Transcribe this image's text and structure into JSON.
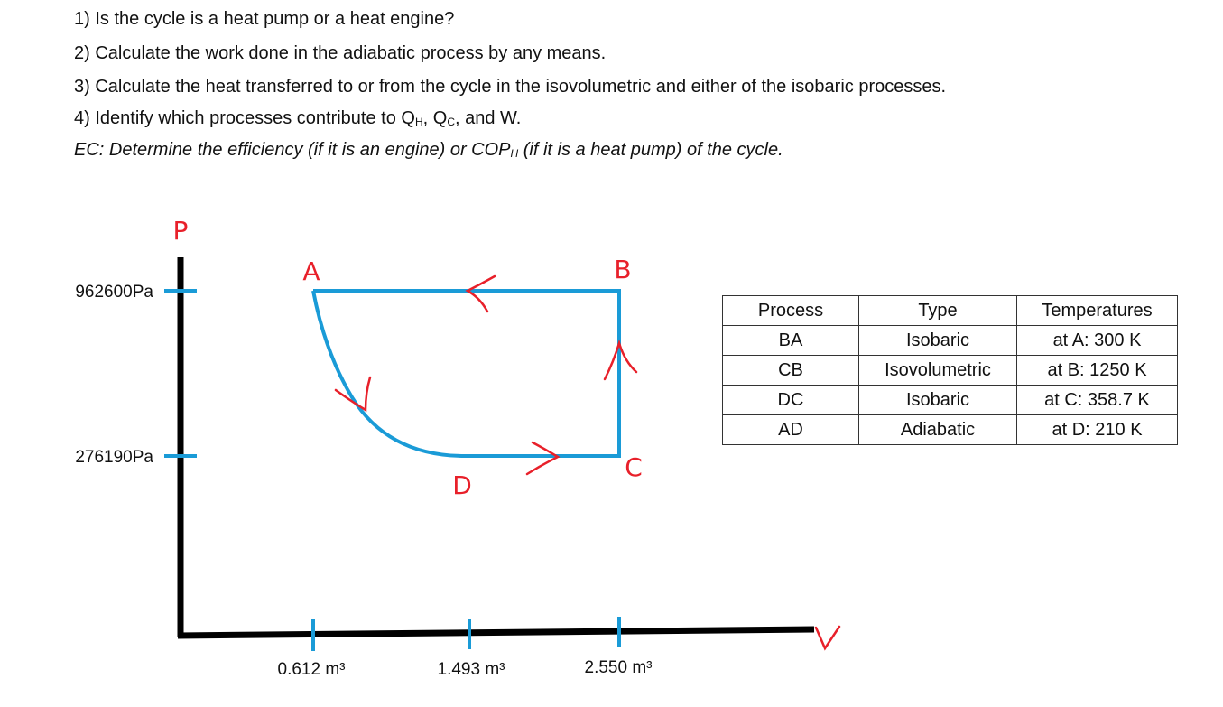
{
  "questions": {
    "q1": "1) Is the cycle is a heat pump or a heat engine?",
    "q2": "2) Calculate the work done in the adiabatic process by any means.",
    "q3": "3) Calculate the heat transferred to or from the cycle in the isovolumetric and either of the isobaric processes.",
    "q4": [
      "4) Identify which processes contribute to Q",
      "H",
      ", Q",
      "C",
      ", and W."
    ],
    "ec": [
      "EC:  Determine the efficiency (if it is an engine) or COP",
      "H",
      " (if it is a heat pump) of the cycle."
    ]
  },
  "diagram": {
    "y_axis_label": "P",
    "x_axis_label": "V",
    "y_ticks": [
      "962600Pa",
      "276190Pa"
    ],
    "x_ticks": [
      "0.612 m³",
      "1.493 m³",
      "2.550 m³"
    ],
    "points": [
      "A",
      "B",
      "C",
      "D"
    ]
  },
  "table": {
    "header": [
      "Process",
      "Type",
      "Temperatures"
    ],
    "rows": [
      [
        "BA",
        "Isobaric",
        "at A: 300 K"
      ],
      [
        "CB",
        "Isovolumetric",
        "at B: 1250 K"
      ],
      [
        "DC",
        "Isobaric",
        "at C: 358.7 K"
      ],
      [
        "AD",
        "Adiabatic",
        "at D: 210 K"
      ]
    ]
  }
}
